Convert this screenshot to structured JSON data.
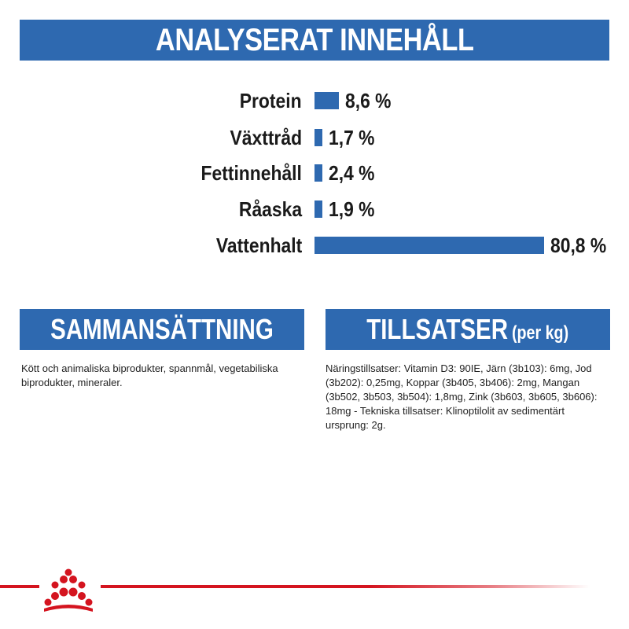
{
  "analysis": {
    "title": "ANALYSERAT INNEHÅLL",
    "rows": [
      {
        "label": "Protein",
        "value": "8,6 %",
        "percent": 8.6
      },
      {
        "label": "Växttråd",
        "value": "1,7 %",
        "percent": 1.7
      },
      {
        "label": "Fettinnehåll",
        "value": "2,4 %",
        "percent": 2.4
      },
      {
        "label": "Råaska",
        "value": "1,9 %",
        "percent": 1.9
      },
      {
        "label": "Vattenhalt",
        "value": "80,8 %",
        "percent": 80.8
      }
    ]
  },
  "composition": {
    "title": "SAMMANSÄTTNING",
    "text": "Kött och animaliska biprodukter, spannmål, vegetabiliska biprodukter, mineraler."
  },
  "additives": {
    "title": "TILLSATSER",
    "title_suffix": "(per kg)",
    "text": "Näringstillsatser: Vitamin D3: 90IE, Järn (3b103): 6mg, Jod (3b202): 0,25mg, Koppar (3b405, 3b406): 2mg, Mangan (3b502, 3b503, 3b504): 1,8mg, Zink (3b603, 3b605, 3b606): 18mg - Tekniska tillsatser: Klinoptilolit av sedimentärt ursprung: 2g."
  },
  "colors": {
    "brand_blue": "#2e69b0",
    "brand_red": "#d4141f"
  },
  "footer": {
    "logo_icon": "royal-canin-crown-icon"
  }
}
